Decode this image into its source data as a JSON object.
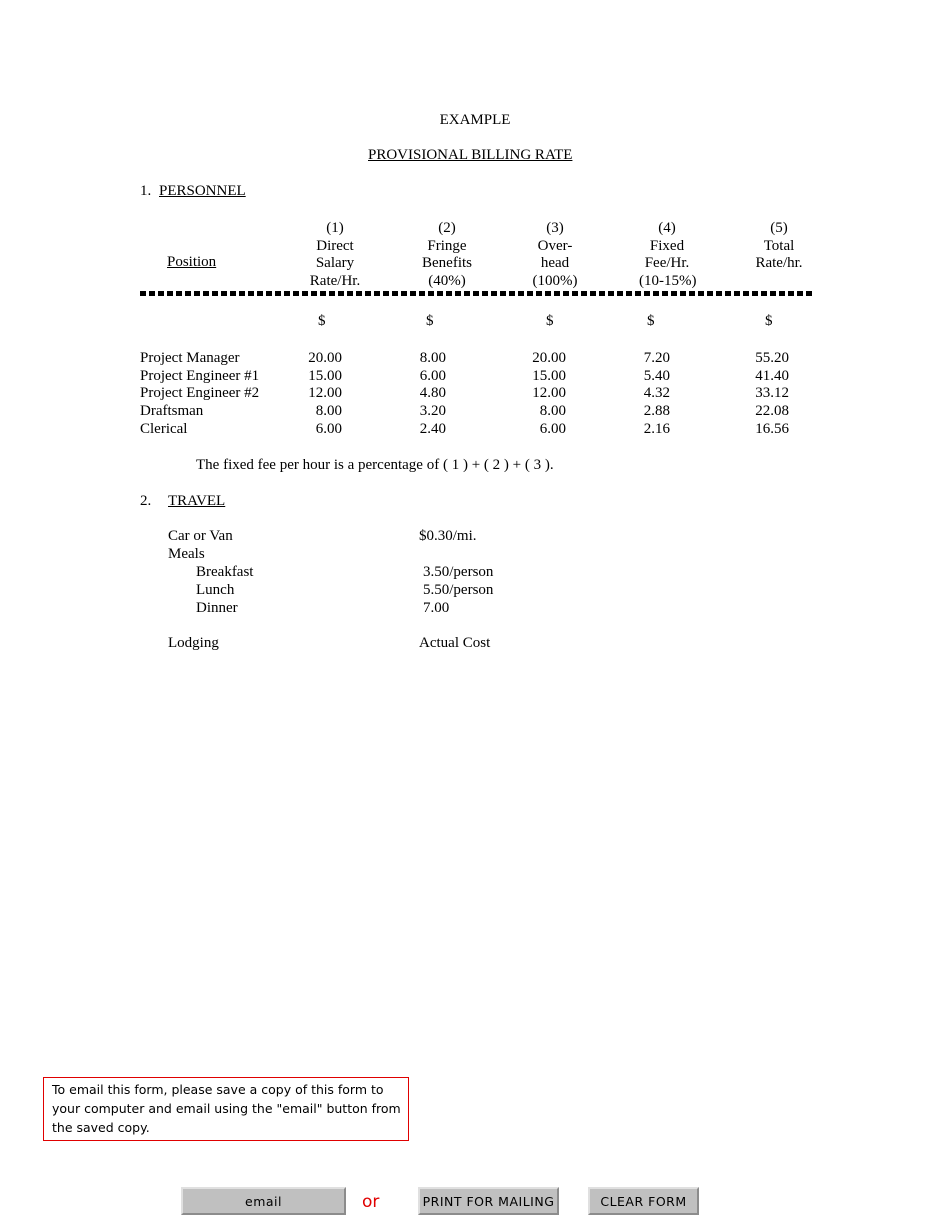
{
  "title": "EXAMPLE",
  "subtitle": "PROVISIONAL BILLING RATE",
  "personnel": {
    "number": "1.",
    "heading": "PERSONNEL",
    "position_header": "Position",
    "columns": [
      {
        "lines": [
          "(1)",
          "Direct",
          "Salary",
          "Rate/Hr."
        ]
      },
      {
        "lines": [
          "(2)",
          "Fringe",
          "Benefits",
          "(40%)"
        ]
      },
      {
        "lines": [
          "(3)",
          "Over-",
          "head",
          "(100%)"
        ]
      },
      {
        "lines": [
          "(4)",
          "Fixed",
          "Fee/Hr.",
          "(10-15%)"
        ]
      },
      {
        "lines": [
          "(5)",
          "Total",
          "Rate/hr.",
          ""
        ]
      }
    ],
    "currency": [
      "$",
      "$",
      "$",
      "$",
      "$"
    ],
    "rows": [
      {
        "position": "Project Manager",
        "values": [
          "20.00",
          "8.00",
          "20.00",
          "7.20",
          "55.20"
        ]
      },
      {
        "position": "Project Engineer #1",
        "values": [
          "15.00",
          "6.00",
          "15.00",
          "5.40",
          "41.40"
        ]
      },
      {
        "position": "Project Engineer #2",
        "values": [
          "12.00",
          "4.80",
          "12.00",
          "4.32",
          "33.12"
        ]
      },
      {
        "position": "Draftsman",
        "values": [
          "8.00",
          "3.20",
          "8.00",
          "2.88",
          "22.08"
        ]
      },
      {
        "position": "Clerical",
        "values": [
          "6.00",
          "2.40",
          "6.00",
          "2.16",
          "16.56"
        ]
      }
    ],
    "note": "The fixed fee per hour is a percentage of ( 1 ) + ( 2 ) + ( 3 )."
  },
  "travel": {
    "number": "2.",
    "heading": "TRAVEL",
    "items": [
      {
        "label": "Car or Van",
        "value": "$0.30/mi.",
        "indent": 0
      },
      {
        "label": "Meals",
        "value": "",
        "indent": 0
      },
      {
        "label": "Breakfast",
        "value": "3.50/person",
        "indent": 1
      },
      {
        "label": "Lunch",
        "value": "5.50/person",
        "indent": 1
      },
      {
        "label": "Dinner",
        "value": "7.00",
        "indent": 1
      },
      {
        "label": "Lodging",
        "value": "Actual Cost",
        "indent": 0
      }
    ]
  },
  "email_note": "To email this form, please save a copy of this form to your computer and email using the \"email\" button from the saved copy.",
  "buttons": {
    "email": "email",
    "or": "or",
    "print": "PRINT FOR MAILING",
    "clear": "CLEAR FORM"
  },
  "colors": {
    "note_border": "#e00000",
    "or_text": "#e00000",
    "button_bg": "#c0c0c0"
  }
}
